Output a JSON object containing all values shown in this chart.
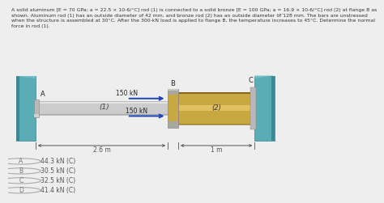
{
  "title_text": "A solid aluminum [E = 70 GPa; a = 22.5 × 10-6/°C] rod (1) is connected to a solid bronze [E = 100 GPa; a = 16.9 × 10-6/°C] rod (2) at flange B as\nshown. Aluminum rod (1) has an outside diameter of 42 mm, and bronze rod (2) has an outside diameter of 128 mm. The bars are unstressed\nwhen the structure is assembled at 30°C. After the 300-kN load is applied to flange B, the temperature increases to 45°C. Determine the normal\nforce in rod (1).",
  "bg_color": "#eeeeee",
  "diagram_bg": "#f8f8f8",
  "teal_color": "#5aacb5",
  "rod1_color": "#cccccc",
  "bronze_color": "#c8a840",
  "bronze_mid": "#e0c060",
  "bronze_dark": "#a08828",
  "flange_gray": "#b8b8b8",
  "flange_gray2": "#d0d0d0",
  "arrow_color": "#1a44bb",
  "dim_color": "#555555",
  "label_color": "#222222",
  "choices": [
    "44.3 kN (C)",
    "30.5 kN (C)",
    "32.5 kN (C)",
    "41.4 kN (C)"
  ],
  "choice_labels": [
    "A",
    "B",
    "C",
    "D"
  ],
  "dots_color": "#777777",
  "wall_shadow": "#3a8a95",
  "rod1_highlight": "#e5e5e5",
  "rod1_shadow": "#aaaaaa"
}
